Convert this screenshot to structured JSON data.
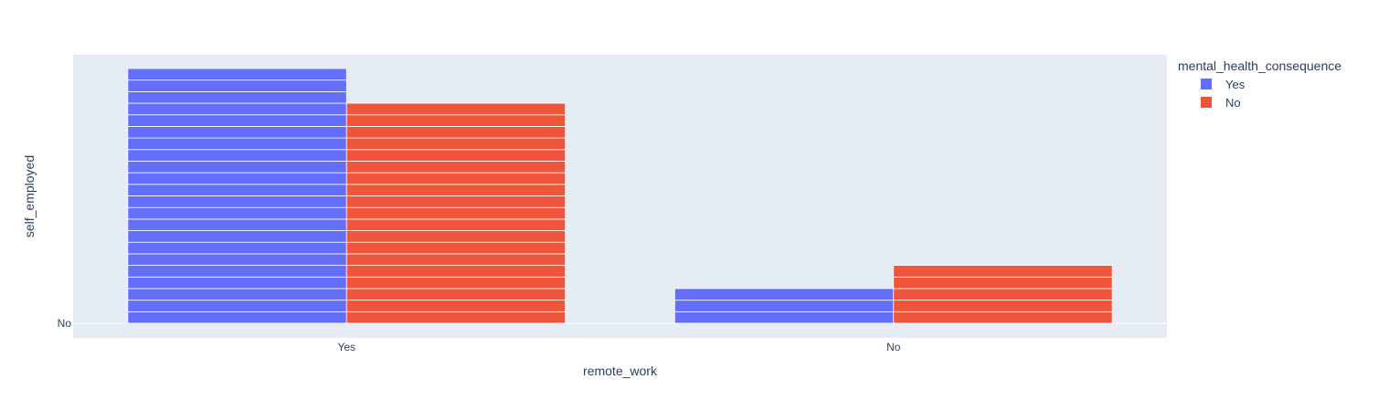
{
  "chart_data": {
    "type": "bar",
    "barmode": "group",
    "title": "",
    "xlabel": "remote_work",
    "ylabel": "self_employed",
    "categories": [
      "Yes",
      "No"
    ],
    "y_tick_labels": [
      "No"
    ],
    "ylim": [
      0,
      23
    ],
    "grid": true,
    "legend": {
      "title": "mental_health_consequence",
      "placement": "top-right"
    },
    "series": [
      {
        "name": "Yes",
        "color": "#636efa",
        "values": [
          22,
          3
        ]
      },
      {
        "name": "No",
        "color": "#ef553b",
        "values": [
          19,
          5
        ]
      }
    ],
    "colors": {
      "plot_background": "#e5ecf6",
      "segment_line": "#ffffff",
      "text": "#2a3f5f"
    }
  }
}
